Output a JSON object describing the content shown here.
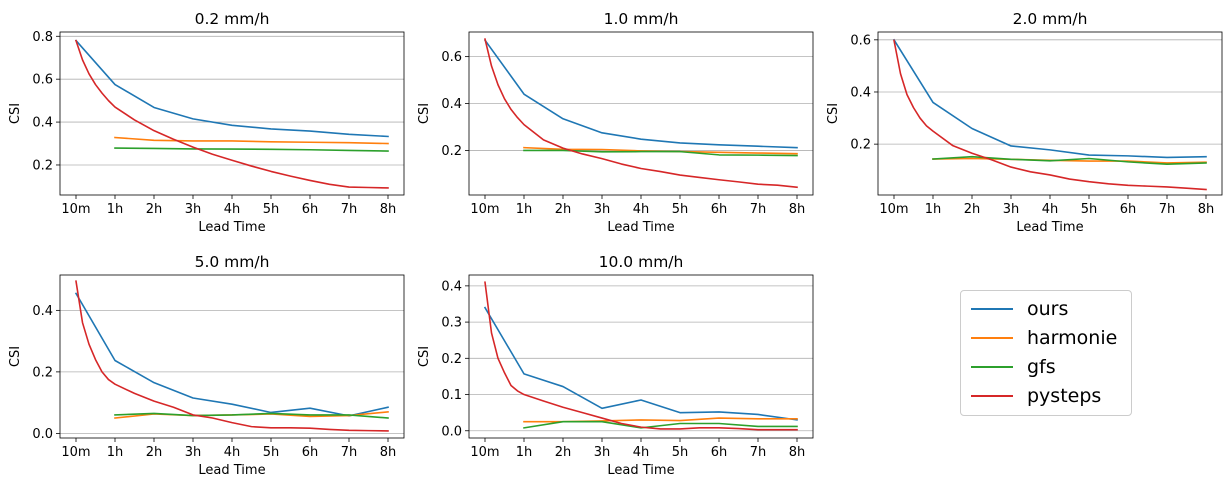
{
  "chart_data": [
    {
      "type": "line",
      "title": "0.2 mm/h",
      "xlabel": "Lead Time",
      "ylabel": "CSI",
      "categories": [
        "10m",
        "1h",
        "2h",
        "3h",
        "4h",
        "5h",
        "6h",
        "7h",
        "8h"
      ],
      "ylim": [
        0.06,
        0.82
      ],
      "yticks": [
        0.2,
        0.4,
        0.6,
        0.8
      ],
      "ytick_labels": [
        "0.2",
        "0.4",
        "0.6",
        "0.8"
      ],
      "grid": "y",
      "series": [
        {
          "name": "ours",
          "x": [
            0,
            1,
            2,
            3,
            4,
            5,
            6,
            7,
            8
          ],
          "values": [
            0.78,
            0.575,
            0.468,
            0.415,
            0.385,
            0.368,
            0.358,
            0.343,
            0.333
          ]
        },
        {
          "name": "harmonie",
          "x": [
            1,
            2,
            3,
            4,
            5,
            6,
            7,
            8
          ],
          "values": [
            0.328,
            0.315,
            0.312,
            0.312,
            0.308,
            0.306,
            0.304,
            0.3
          ]
        },
        {
          "name": "gfs",
          "x": [
            1,
            2,
            3,
            4,
            5,
            6,
            7,
            8
          ],
          "values": [
            0.279,
            0.277,
            0.275,
            0.274,
            0.273,
            0.271,
            0.268,
            0.265
          ]
        },
        {
          "name": "pysteps",
          "x": [
            0,
            0.167,
            0.333,
            0.5,
            0.667,
            0.833,
            1,
            1.5,
            2,
            2.5,
            3,
            3.5,
            4,
            4.5,
            5,
            5.5,
            6,
            6.5,
            7,
            7.5,
            8
          ],
          "values": [
            0.78,
            0.69,
            0.625,
            0.575,
            0.535,
            0.5,
            0.47,
            0.41,
            0.36,
            0.32,
            0.283,
            0.25,
            0.222,
            0.195,
            0.17,
            0.148,
            0.128,
            0.11,
            0.097,
            0.095,
            0.093
          ]
        }
      ]
    },
    {
      "type": "line",
      "title": "1.0 mm/h",
      "xlabel": "Lead Time",
      "ylabel": "CSI",
      "categories": [
        "10m",
        "1h",
        "2h",
        "3h",
        "4h",
        "5h",
        "6h",
        "7h",
        "8h"
      ],
      "ylim": [
        0.01,
        0.705
      ],
      "yticks": [
        0.2,
        0.4,
        0.6
      ],
      "ytick_labels": [
        "0.2",
        "0.4",
        "0.6"
      ],
      "grid": "y",
      "series": [
        {
          "name": "ours",
          "x": [
            0,
            1,
            2,
            3,
            4,
            5,
            6,
            7,
            8
          ],
          "values": [
            0.67,
            0.44,
            0.335,
            0.275,
            0.248,
            0.232,
            0.224,
            0.218,
            0.212
          ]
        },
        {
          "name": "harmonie",
          "x": [
            1,
            2,
            3,
            4,
            5,
            6,
            7,
            8
          ],
          "values": [
            0.212,
            0.205,
            0.204,
            0.198,
            0.195,
            0.192,
            0.189,
            0.186
          ]
        },
        {
          "name": "gfs",
          "x": [
            1,
            2,
            3,
            4,
            5,
            6,
            7,
            8
          ],
          "values": [
            0.2,
            0.2,
            0.194,
            0.195,
            0.195,
            0.181,
            0.18,
            0.178
          ]
        },
        {
          "name": "pysteps",
          "x": [
            0,
            0.167,
            0.333,
            0.5,
            0.667,
            0.833,
            1,
            1.5,
            2,
            2.5,
            3,
            3.5,
            4,
            4.5,
            5,
            5.5,
            6,
            6.5,
            7,
            7.5,
            8
          ],
          "values": [
            0.675,
            0.56,
            0.48,
            0.42,
            0.375,
            0.34,
            0.31,
            0.245,
            0.21,
            0.185,
            0.165,
            0.142,
            0.123,
            0.11,
            0.095,
            0.085,
            0.075,
            0.066,
            0.056,
            0.052,
            0.043
          ]
        }
      ]
    },
    {
      "type": "line",
      "title": "2.0 mm/h",
      "xlabel": "Lead Time",
      "ylabel": "CSI",
      "categories": [
        "10m",
        "1h",
        "2h",
        "3h",
        "4h",
        "5h",
        "6h",
        "7h",
        "8h"
      ],
      "ylim": [
        0.005,
        0.63
      ],
      "yticks": [
        0.2,
        0.4,
        0.6
      ],
      "ytick_labels": [
        "0.2",
        "0.4",
        "0.6"
      ],
      "grid": "y",
      "series": [
        {
          "name": "ours",
          "x": [
            0,
            1,
            2,
            3,
            4,
            5,
            6,
            7,
            8
          ],
          "values": [
            0.6,
            0.36,
            0.26,
            0.193,
            0.178,
            0.158,
            0.155,
            0.149,
            0.152
          ]
        },
        {
          "name": "harmonie",
          "x": [
            1,
            2,
            3,
            4,
            5,
            6,
            7,
            8
          ],
          "values": [
            0.143,
            0.145,
            0.142,
            0.138,
            0.135,
            0.135,
            0.128,
            0.131
          ]
        },
        {
          "name": "gfs",
          "x": [
            1,
            2,
            3,
            4,
            5,
            6,
            7,
            8
          ],
          "values": [
            0.143,
            0.152,
            0.142,
            0.136,
            0.145,
            0.132,
            0.123,
            0.128
          ]
        },
        {
          "name": "pysteps",
          "x": [
            0,
            0.167,
            0.333,
            0.5,
            0.667,
            0.833,
            1,
            1.5,
            2,
            2.5,
            3,
            3.5,
            4,
            4.5,
            5,
            5.5,
            6,
            6.5,
            7,
            7.5,
            8
          ],
          "values": [
            0.598,
            0.47,
            0.39,
            0.34,
            0.3,
            0.27,
            0.25,
            0.195,
            0.165,
            0.14,
            0.112,
            0.094,
            0.082,
            0.066,
            0.056,
            0.048,
            0.042,
            0.039,
            0.036,
            0.031,
            0.026
          ]
        }
      ]
    },
    {
      "type": "line",
      "title": "5.0 mm/h",
      "xlabel": "Lead Time",
      "ylabel": "CSI",
      "categories": [
        "10m",
        "1h",
        "2h",
        "3h",
        "4h",
        "5h",
        "6h",
        "7h",
        "8h"
      ],
      "ylim": [
        -0.015,
        0.515
      ],
      "yticks": [
        0.0,
        0.2,
        0.4
      ],
      "ytick_labels": [
        "0.0",
        "0.2",
        "0.4"
      ],
      "grid": "y",
      "series": [
        {
          "name": "ours",
          "x": [
            0,
            1,
            2,
            3,
            4,
            5,
            6,
            7,
            8
          ],
          "values": [
            0.455,
            0.237,
            0.165,
            0.115,
            0.095,
            0.068,
            0.082,
            0.057,
            0.085
          ]
        },
        {
          "name": "harmonie",
          "x": [
            1,
            2,
            3,
            4,
            5,
            6,
            7,
            8
          ],
          "values": [
            0.05,
            0.063,
            0.058,
            0.06,
            0.063,
            0.055,
            0.058,
            0.07
          ]
        },
        {
          "name": "gfs",
          "x": [
            1,
            2,
            3,
            4,
            5,
            6,
            7,
            8
          ],
          "values": [
            0.06,
            0.065,
            0.058,
            0.06,
            0.065,
            0.06,
            0.06,
            0.05
          ]
        },
        {
          "name": "pysteps",
          "x": [
            0,
            0.167,
            0.333,
            0.5,
            0.667,
            0.833,
            1,
            1.5,
            2,
            2.5,
            3,
            3.5,
            4,
            4.5,
            5,
            5.5,
            6,
            6.5,
            7,
            7.5,
            8
          ],
          "values": [
            0.495,
            0.36,
            0.29,
            0.24,
            0.2,
            0.175,
            0.16,
            0.13,
            0.105,
            0.085,
            0.06,
            0.05,
            0.035,
            0.022,
            0.018,
            0.018,
            0.017,
            0.013,
            0.01,
            0.009,
            0.008
          ]
        }
      ]
    },
    {
      "type": "line",
      "title": "10.0 mm/h",
      "xlabel": "Lead Time",
      "ylabel": "CSI",
      "categories": [
        "10m",
        "1h",
        "2h",
        "3h",
        "4h",
        "5h",
        "6h",
        "7h",
        "8h"
      ],
      "ylim": [
        -0.02,
        0.43
      ],
      "yticks": [
        0.0,
        0.1,
        0.2,
        0.3,
        0.4
      ],
      "ytick_labels": [
        "0.0",
        "0.1",
        "0.2",
        "0.3",
        "0.4"
      ],
      "grid": "y",
      "series": [
        {
          "name": "ours",
          "x": [
            0,
            1,
            2,
            3,
            4,
            5,
            6,
            7,
            8
          ],
          "values": [
            0.34,
            0.157,
            0.122,
            0.062,
            0.085,
            0.05,
            0.052,
            0.045,
            0.03
          ]
        },
        {
          "name": "harmonie",
          "x": [
            1,
            2,
            3,
            4,
            5,
            6,
            7,
            8
          ],
          "values": [
            0.025,
            0.025,
            0.027,
            0.03,
            0.028,
            0.035,
            0.033,
            0.033
          ]
        },
        {
          "name": "gfs",
          "x": [
            1,
            2,
            3,
            4,
            5,
            6,
            7,
            8
          ],
          "values": [
            0.008,
            0.025,
            0.025,
            0.008,
            0.02,
            0.02,
            0.012,
            0.012
          ]
        },
        {
          "name": "pysteps",
          "x": [
            0,
            0.167,
            0.333,
            0.5,
            0.667,
            0.833,
            1,
            1.5,
            2,
            2.5,
            3,
            3.5,
            4,
            4.5,
            5,
            5.5,
            6,
            6.5,
            7,
            7.5,
            8
          ],
          "values": [
            0.41,
            0.27,
            0.2,
            0.16,
            0.125,
            0.11,
            0.1,
            0.082,
            0.065,
            0.05,
            0.035,
            0.02,
            0.01,
            0.005,
            0.005,
            0.008,
            0.008,
            0.006,
            0.003,
            0.003,
            0.003
          ]
        }
      ]
    }
  ],
  "legend": {
    "items": [
      {
        "label": "ours",
        "color": "#1f77b4"
      },
      {
        "label": "harmonie",
        "color": "#ff7f0e"
      },
      {
        "label": "gfs",
        "color": "#2ca02c"
      },
      {
        "label": "pysteps",
        "color": "#d62728"
      }
    ]
  }
}
